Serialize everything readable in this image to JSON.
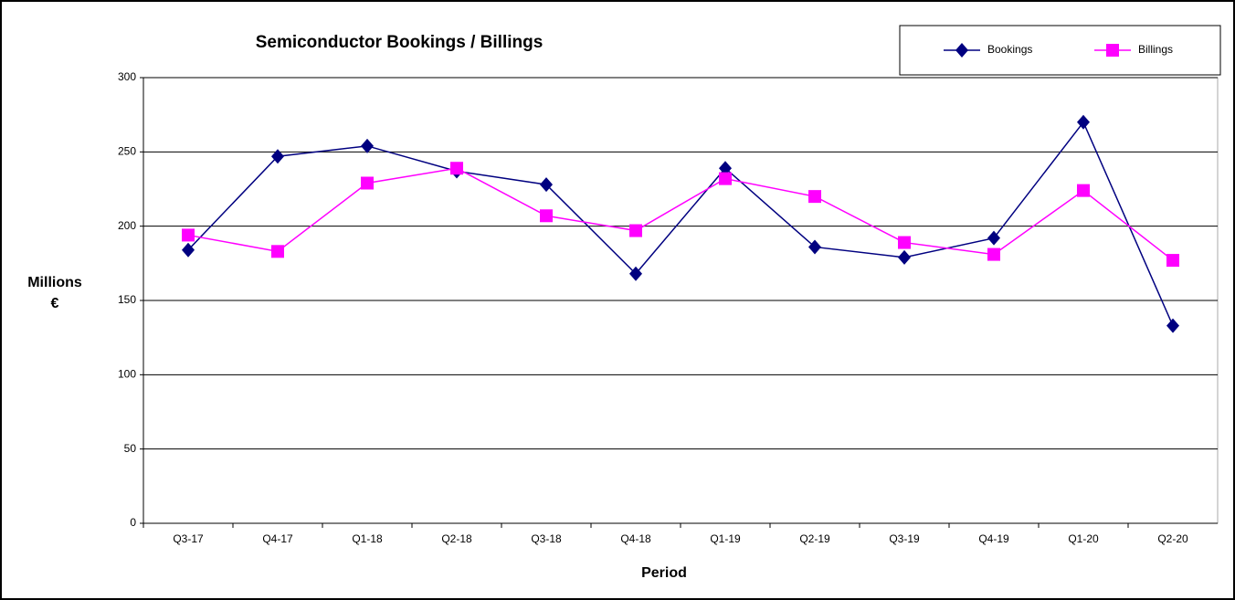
{
  "chart_data": {
    "type": "line",
    "title": "Semiconductor Bookings / Billings",
    "x_label": "Period",
    "y_label": [
      "Millions",
      "€"
    ],
    "categories": [
      "Q3-17",
      "Q4-17",
      "Q1-18",
      "Q2-18",
      "Q3-18",
      "Q4-18",
      "Q1-19",
      "Q2-19",
      "Q3-19",
      "Q4-19",
      "Q1-20",
      "Q2-20"
    ],
    "series": [
      {
        "name": "Bookings",
        "color": "#000080",
        "marker": "diamond",
        "values": [
          184,
          247,
          254,
          237,
          228,
          168,
          239,
          186,
          179,
          192,
          270,
          133
        ]
      },
      {
        "name": "Billings",
        "color": "#ff00ff",
        "marker": "square",
        "values": [
          194,
          183,
          229,
          239,
          207,
          197,
          232,
          220,
          189,
          181,
          224,
          177
        ]
      }
    ],
    "ylim": [
      0,
      300
    ],
    "yticks": [
      0,
      50,
      100,
      150,
      200,
      250,
      300
    ],
    "grid": true,
    "legend": "top-right"
  }
}
